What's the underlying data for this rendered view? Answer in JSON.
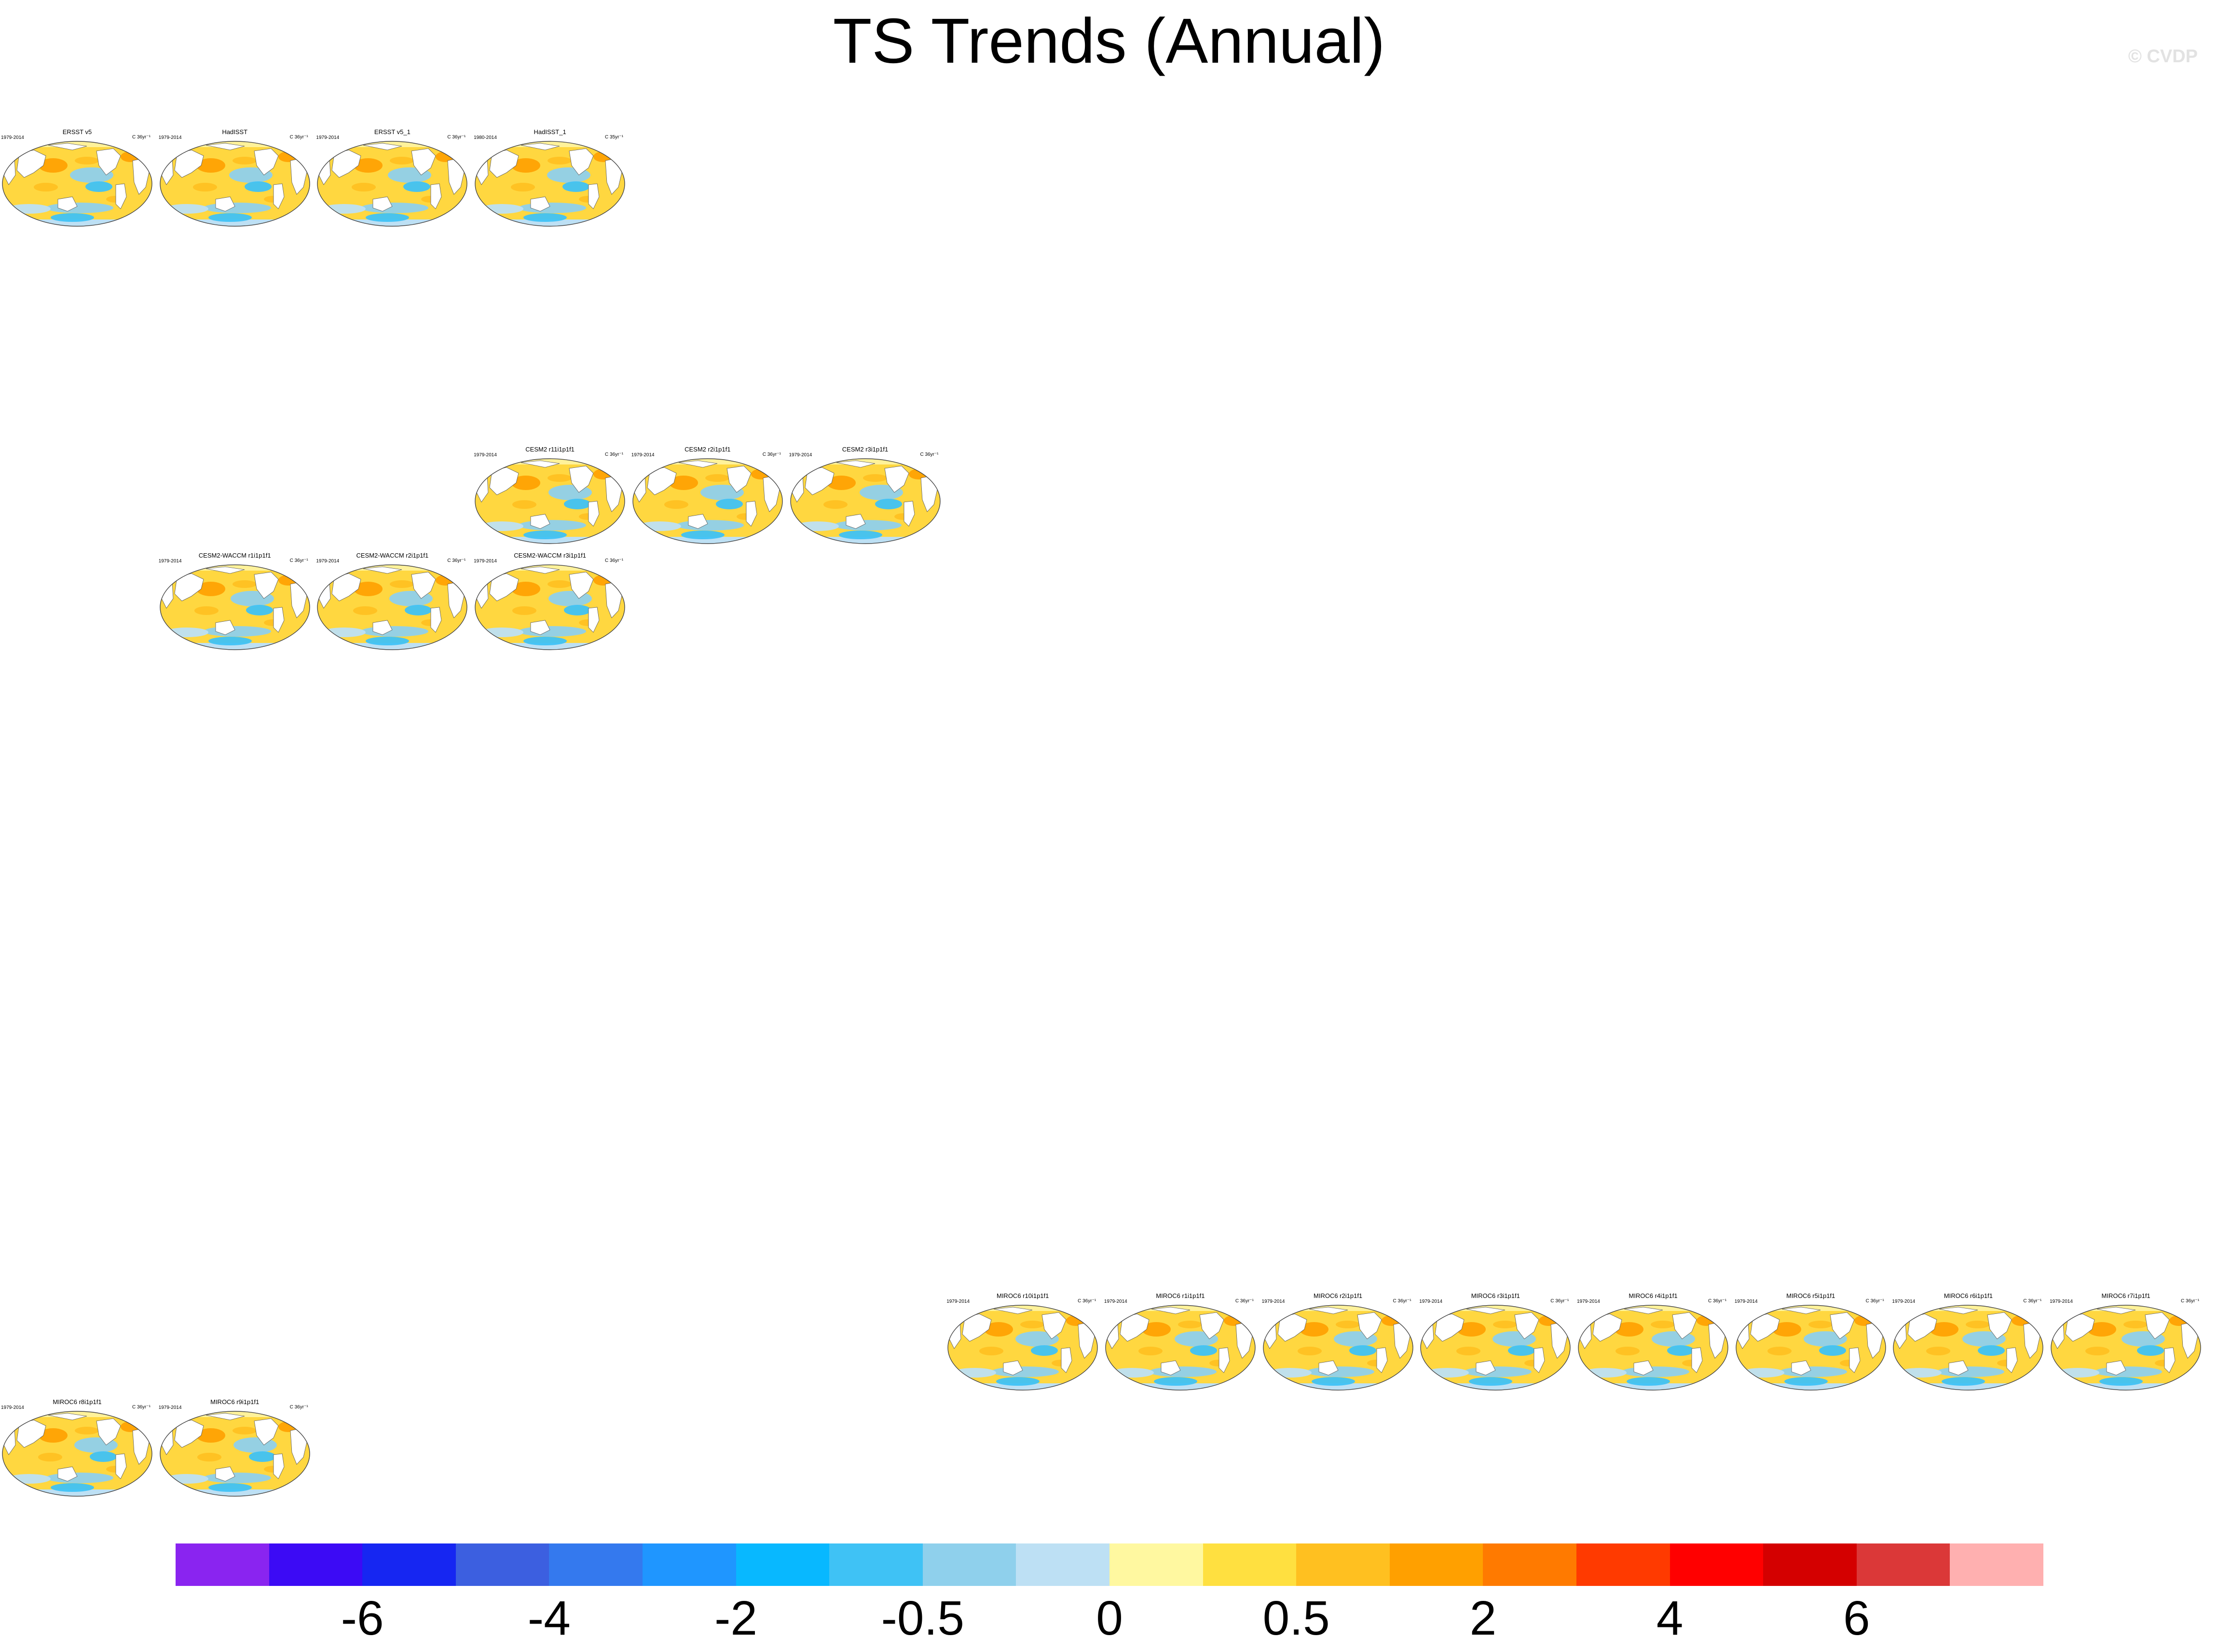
{
  "title": "TS Trends (Annual)",
  "watermark": "© CVDP",
  "chart_data": {
    "type": "heatmap",
    "title": "TS Trends (Annual)",
    "units": "C 36yr⁻¹",
    "colorbar": {
      "colors": [
        "#8a24f0",
        "#3c0af5",
        "#1626f2",
        "#3c5fe0",
        "#3479ee",
        "#1f96ff",
        "#08b8ff",
        "#3fc2f5",
        "#8fd0ec",
        "#bde0f4",
        "#fff8a0",
        "#ffe040",
        "#ffc020",
        "#ffa000",
        "#ff7a00",
        "#ff3a00",
        "#ff0000",
        "#d40000",
        "#db3838",
        "#ffb0b0"
      ],
      "tick_labels": [
        "-6",
        "-4",
        "-2",
        "-0.5",
        "0",
        "0.5",
        "2",
        "4",
        "6"
      ]
    },
    "panels": [
      {
        "name": "ERSST v5",
        "period": "1979-2014",
        "units": "C 36yr⁻¹",
        "col": 0,
        "row": 0
      },
      {
        "name": "HadISST",
        "period": "1979-2014",
        "units": "C 36yr⁻¹",
        "col": 1,
        "row": 0
      },
      {
        "name": "ERSST v5_1",
        "period": "1979-2014",
        "units": "C 36yr⁻¹",
        "col": 2,
        "row": 0
      },
      {
        "name": "HadISST_1",
        "period": "1980-2014",
        "units": "C 35yr⁻¹",
        "col": 3,
        "row": 0
      },
      {
        "name": "CESM2 r11i1p1f1",
        "period": "1979-2014",
        "units": "C 36yr⁻¹",
        "col": 3,
        "row": 3
      },
      {
        "name": "CESM2 r2i1p1f1",
        "period": "1979-2014",
        "units": "C 36yr⁻¹",
        "col": 4,
        "row": 3
      },
      {
        "name": "CESM2 r3i1p1f1",
        "period": "1979-2014",
        "units": "C 36yr⁻¹",
        "col": 5,
        "row": 3
      },
      {
        "name": "CESM2-WACCM r1i1p1f1",
        "period": "1979-2014",
        "units": "C 36yr⁻¹",
        "col": 1,
        "row": 4
      },
      {
        "name": "CESM2-WACCM r2i1p1f1",
        "period": "1979-2014",
        "units": "C 36yr⁻¹",
        "col": 2,
        "row": 4
      },
      {
        "name": "CESM2-WACCM r3i1p1f1",
        "period": "1979-2014",
        "units": "C 36yr⁻¹",
        "col": 3,
        "row": 4
      },
      {
        "name": "MIROC6 r10i1p1f1",
        "period": "1979-2014",
        "units": "C 36yr⁻¹",
        "col": 6,
        "row": 11
      },
      {
        "name": "MIROC6 r1i1p1f1",
        "period": "1979-2014",
        "units": "C 36yr⁻¹",
        "col": 7,
        "row": 11
      },
      {
        "name": "MIROC6 r2i1p1f1",
        "period": "1979-2014",
        "units": "C 36yr⁻¹",
        "col": 8,
        "row": 11
      },
      {
        "name": "MIROC6 r3i1p1f1",
        "period": "1979-2014",
        "units": "C 36yr⁻¹",
        "col": 9,
        "row": 11
      },
      {
        "name": "MIROC6 r4i1p1f1",
        "period": "1979-2014",
        "units": "C 36yr⁻¹",
        "col": 10,
        "row": 11
      },
      {
        "name": "MIROC6 r5i1p1f1",
        "period": "1979-2014",
        "units": "C 36yr⁻¹",
        "col": 11,
        "row": 11
      },
      {
        "name": "MIROC6 r6i1p1f1",
        "period": "1979-2014",
        "units": "C 36yr⁻¹",
        "col": 12,
        "row": 11
      },
      {
        "name": "MIROC6 r7i1p1f1",
        "period": "1979-2014",
        "units": "C 36yr⁻¹",
        "col": 13,
        "row": 11
      },
      {
        "name": "MIROC6 r8i1p1f1",
        "period": "1979-2014",
        "units": "C 36yr⁻¹",
        "col": 0,
        "row": 12
      },
      {
        "name": "MIROC6 r9i1p1f1",
        "period": "1979-2014",
        "units": "C 36yr⁻¹",
        "col": 1,
        "row": 12
      }
    ]
  }
}
